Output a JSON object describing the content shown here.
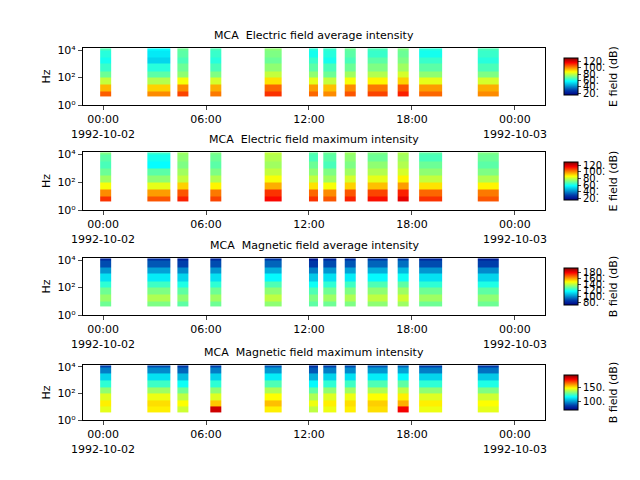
{
  "chart_data": [
    {
      "type": "heatmap",
      "title": "MCA  Electric field average intensity",
      "ylabel": "Hz",
      "log": "y",
      "xlim": [
        "1992-10-01 22:50",
        "1992-10-03 01:45"
      ],
      "xticks": [
        {
          "value": "1992-10-02 00:00",
          "label": "00:00\n1992-10-02"
        },
        {
          "value": "1992-10-02 06:00",
          "label": "06:00"
        },
        {
          "value": "1992-10-02 12:00",
          "label": "12:00"
        },
        {
          "value": "1992-10-02 18:00",
          "label": "18:00"
        },
        {
          "value": "1992-10-03 00:00",
          "label": "00:00\n1992-10-03"
        }
      ],
      "ylim": [
        1,
        14000
      ],
      "yticks": [
        {
          "value": 1,
          "label": "10⁰"
        },
        {
          "value": 100,
          "label": "10²"
        },
        {
          "value": 10000,
          "label": "10⁴"
        }
      ],
      "x": [
        [
          "1992-10-01 23:50",
          "1992-10-02 00:30"
        ],
        [
          "1992-10-02 02:35",
          "1992-10-02 03:55"
        ],
        [
          "1992-10-02 04:20",
          "1992-10-02 05:00"
        ],
        [
          "1992-10-02 06:15",
          "1992-10-02 06:55"
        ],
        [
          "1992-10-02 09:25",
          "1992-10-02 10:25"
        ],
        [
          "1992-10-02 12:00",
          "1992-10-02 12:30"
        ],
        [
          "1992-10-02 12:50",
          "1992-10-02 13:35"
        ],
        [
          "1992-10-02 14:05",
          "1992-10-02 14:45"
        ],
        [
          "1992-10-02 15:25",
          "1992-10-02 16:35"
        ],
        [
          "1992-10-02 17:10",
          "1992-10-02 17:50"
        ],
        [
          "1992-10-02 18:25",
          "1992-10-02 19:45"
        ],
        [
          "1992-10-02 21:50",
          "1992-10-02 23:05"
        ]
      ],
      "y": [
        4,
        10,
        30,
        100,
        300,
        1000,
        3000,
        10000,
        13000
      ],
      "z": [
        [
          105,
          100,
          108,
          102,
          110,
          104,
          100,
          106,
          108,
          112,
          104,
          100
        ],
        [
          95,
          92,
          100,
          96,
          104,
          98,
          94,
          100,
          102,
          106,
          98,
          96
        ],
        [
          80,
          78,
          86,
          82,
          90,
          84,
          80,
          86,
          88,
          92,
          84,
          82
        ],
        [
          70,
          68,
          74,
          72,
          80,
          74,
          70,
          76,
          78,
          82,
          74,
          72
        ],
        [
          64,
          62,
          70,
          66,
          74,
          68,
          66,
          70,
          72,
          76,
          68,
          66
        ],
        [
          60,
          52,
          66,
          62,
          70,
          64,
          60,
          66,
          68,
          72,
          64,
          62
        ],
        [
          62,
          55,
          68,
          64,
          72,
          60,
          62,
          68,
          64,
          70,
          60,
          64
        ],
        [
          66,
          58,
          70,
          66,
          74,
          62,
          64,
          70,
          66,
          72,
          62,
          66
        ]
      ],
      "colorbar": {
        "title": "E field (dB)",
        "range": [
          15,
          130
        ],
        "ticks": [
          {
            "value": 20,
            "label": "20."
          },
          {
            "value": 40,
            "label": "40."
          },
          {
            "value": 60,
            "label": "60."
          },
          {
            "value": 80,
            "label": "80."
          },
          {
            "value": 100,
            "label": "100."
          },
          {
            "value": 120,
            "label": "120."
          }
        ]
      }
    },
    {
      "type": "heatmap",
      "title": "MCA  Electric field maximum intensity",
      "ylabel": "Hz",
      "log": "y",
      "xlim": [
        "1992-10-01 22:50",
        "1992-10-03 01:45"
      ],
      "xticks": [
        {
          "value": "1992-10-02 00:00",
          "label": "00:00\n1992-10-02"
        },
        {
          "value": "1992-10-02 06:00",
          "label": "06:00"
        },
        {
          "value": "1992-10-02 12:00",
          "label": "12:00"
        },
        {
          "value": "1992-10-02 18:00",
          "label": "18:00"
        },
        {
          "value": "1992-10-03 00:00",
          "label": "00:00\n1992-10-03"
        }
      ],
      "ylim": [
        1,
        14000
      ],
      "yticks": [
        {
          "value": 1,
          "label": "10⁰"
        },
        {
          "value": 100,
          "label": "10²"
        },
        {
          "value": 10000,
          "label": "10⁴"
        }
      ],
      "x": [
        [
          "1992-10-01 23:50",
          "1992-10-02 00:30"
        ],
        [
          "1992-10-02 02:35",
          "1992-10-02 03:55"
        ],
        [
          "1992-10-02 04:20",
          "1992-10-02 05:00"
        ],
        [
          "1992-10-02 06:15",
          "1992-10-02 06:55"
        ],
        [
          "1992-10-02 09:25",
          "1992-10-02 10:25"
        ],
        [
          "1992-10-02 12:00",
          "1992-10-02 12:30"
        ],
        [
          "1992-10-02 12:50",
          "1992-10-02 13:35"
        ],
        [
          "1992-10-02 14:05",
          "1992-10-02 14:45"
        ],
        [
          "1992-10-02 15:25",
          "1992-10-02 16:35"
        ],
        [
          "1992-10-02 17:10",
          "1992-10-02 17:50"
        ],
        [
          "1992-10-02 18:25",
          "1992-10-02 19:45"
        ],
        [
          "1992-10-02 21:50",
          "1992-10-02 23:05"
        ]
      ],
      "y": [
        4,
        10,
        30,
        100,
        300,
        1000,
        3000,
        10000,
        13000
      ],
      "z": [
        [
          110,
          106,
          112,
          108,
          115,
          110,
          106,
          112,
          114,
          118,
          110,
          106
        ],
        [
          100,
          98,
          106,
          102,
          110,
          104,
          100,
          106,
          108,
          112,
          104,
          102
        ],
        [
          86,
          84,
          92,
          88,
          96,
          90,
          86,
          92,
          94,
          98,
          90,
          88
        ],
        [
          76,
          74,
          80,
          78,
          86,
          80,
          76,
          82,
          84,
          88,
          80,
          78
        ],
        [
          70,
          68,
          76,
          72,
          80,
          74,
          72,
          76,
          78,
          82,
          74,
          72
        ],
        [
          66,
          58,
          72,
          68,
          76,
          70,
          66,
          72,
          74,
          78,
          70,
          68
        ],
        [
          68,
          60,
          74,
          70,
          78,
          66,
          68,
          74,
          70,
          76,
          66,
          70
        ],
        [
          72,
          64,
          76,
          72,
          80,
          68,
          70,
          76,
          72,
          78,
          68,
          72
        ]
      ],
      "colorbar": {
        "title": "E field (dB)",
        "range": [
          15,
          130
        ],
        "ticks": [
          {
            "value": 20,
            "label": "20."
          },
          {
            "value": 40,
            "label": "40."
          },
          {
            "value": 60,
            "label": "60."
          },
          {
            "value": 80,
            "label": "80."
          },
          {
            "value": 100,
            "label": "100."
          },
          {
            "value": 120,
            "label": "120."
          }
        ]
      }
    },
    {
      "type": "heatmap",
      "title": "MCA  Magnetic field average intensity",
      "ylabel": "Hz",
      "log": "y",
      "xlim": [
        "1992-10-01 22:50",
        "1992-10-03 01:45"
      ],
      "xticks": [
        {
          "value": "1992-10-02 00:00",
          "label": "00:00\n1992-10-02"
        },
        {
          "value": "1992-10-02 06:00",
          "label": "06:00"
        },
        {
          "value": "1992-10-02 12:00",
          "label": "12:00"
        },
        {
          "value": "1992-10-02 18:00",
          "label": "18:00"
        },
        {
          "value": "1992-10-03 00:00",
          "label": "00:00\n1992-10-03"
        }
      ],
      "ylim": [
        1,
        14000
      ],
      "yticks": [
        {
          "value": 1,
          "label": "10⁰"
        },
        {
          "value": 100,
          "label": "10²"
        },
        {
          "value": 10000,
          "label": "10⁴"
        }
      ],
      "x": [
        [
          "1992-10-01 23:50",
          "1992-10-02 00:30"
        ],
        [
          "1992-10-02 02:35",
          "1992-10-02 03:55"
        ],
        [
          "1992-10-02 04:20",
          "1992-10-02 05:00"
        ],
        [
          "1992-10-02 06:15",
          "1992-10-02 06:55"
        ],
        [
          "1992-10-02 09:25",
          "1992-10-02 10:25"
        ],
        [
          "1992-10-02 12:00",
          "1992-10-02 12:30"
        ],
        [
          "1992-10-02 12:50",
          "1992-10-02 13:35"
        ],
        [
          "1992-10-02 14:05",
          "1992-10-02 14:45"
        ],
        [
          "1992-10-02 15:25",
          "1992-10-02 16:35"
        ],
        [
          "1992-10-02 17:10",
          "1992-10-02 17:50"
        ],
        [
          "1992-10-02 18:25",
          "1992-10-02 19:45"
        ],
        [
          "1992-10-02 21:50",
          "1992-10-02 23:05"
        ]
      ],
      "y": [
        4,
        10,
        30,
        100,
        300,
        1000,
        3000,
        10000,
        13000
      ],
      "z": [
        [
          130,
          132,
          128,
          130,
          134,
          128,
          130,
          132,
          134,
          136,
          130,
          130
        ],
        [
          135,
          138,
          134,
          136,
          140,
          132,
          136,
          138,
          140,
          142,
          136,
          134
        ],
        [
          130,
          132,
          128,
          130,
          134,
          126,
          130,
          132,
          134,
          136,
          130,
          128
        ],
        [
          122,
          124,
          120,
          122,
          126,
          118,
          122,
          124,
          126,
          128,
          122,
          120
        ],
        [
          112,
          114,
          110,
          112,
          116,
          108,
          112,
          114,
          116,
          118,
          112,
          110
        ],
        [
          100,
          102,
          98,
          100,
          104,
          96,
          100,
          102,
          104,
          106,
          100,
          98
        ],
        [
          88,
          90,
          86,
          88,
          92,
          84,
          88,
          90,
          92,
          94,
          88,
          86
        ],
        [
          80,
          82,
          78,
          80,
          84,
          76,
          80,
          82,
          84,
          86,
          80,
          78
        ]
      ],
      "colorbar": {
        "title": "B field (dB)",
        "range": [
          70,
          195
        ],
        "ticks": [
          {
            "value": 80,
            "label": "80."
          },
          {
            "value": 100,
            "label": "100."
          },
          {
            "value": 120,
            "label": "120."
          },
          {
            "value": 140,
            "label": "140."
          },
          {
            "value": 160,
            "label": "160."
          },
          {
            "value": 180,
            "label": "180."
          }
        ]
      }
    },
    {
      "type": "heatmap",
      "title": "MCA  Magnetic field maximum intensity",
      "ylabel": "Hz",
      "log": "y",
      "xlim": [
        "1992-10-01 22:50",
        "1992-10-03 01:45"
      ],
      "xticks": [
        {
          "value": "1992-10-02 00:00",
          "label": "00:00\n1992-10-02"
        },
        {
          "value": "1992-10-02 06:00",
          "label": "06:00"
        },
        {
          "value": "1992-10-02 12:00",
          "label": "12:00"
        },
        {
          "value": "1992-10-02 18:00",
          "label": "18:00"
        },
        {
          "value": "1992-10-03 00:00",
          "label": "00:00\n1992-10-03"
        }
      ],
      "ylim": [
        1,
        14000
      ],
      "yticks": [
        {
          "value": 1,
          "label": "10⁰"
        },
        {
          "value": 100,
          "label": "10²"
        },
        {
          "value": 10000,
          "label": "10⁴"
        }
      ],
      "x": [
        [
          "1992-10-01 23:50",
          "1992-10-02 00:30"
        ],
        [
          "1992-10-02 02:35",
          "1992-10-02 03:55"
        ],
        [
          "1992-10-02 04:20",
          "1992-10-02 05:00"
        ],
        [
          "1992-10-02 06:15",
          "1992-10-02 06:55"
        ],
        [
          "1992-10-02 09:25",
          "1992-10-02 10:25"
        ],
        [
          "1992-10-02 12:00",
          "1992-10-02 12:30"
        ],
        [
          "1992-10-02 12:50",
          "1992-10-02 13:35"
        ],
        [
          "1992-10-02 14:05",
          "1992-10-02 14:45"
        ],
        [
          "1992-10-02 15:25",
          "1992-10-02 16:35"
        ],
        [
          "1992-10-02 17:10",
          "1992-10-02 17:50"
        ],
        [
          "1992-10-02 18:25",
          "1992-10-02 19:45"
        ],
        [
          "1992-10-02 21:50",
          "1992-10-02 23:05"
        ]
      ],
      "y": [
        4,
        10,
        30,
        100,
        300,
        1000,
        3000,
        10000,
        13000
      ],
      "z": [
        [
          145,
          150,
          142,
          185,
          150,
          140,
          146,
          150,
          152,
          180,
          146,
          145
        ],
        [
          150,
          152,
          148,
          155,
          156,
          146,
          150,
          152,
          154,
          158,
          150,
          148
        ],
        [
          144,
          146,
          140,
          144,
          148,
          138,
          144,
          146,
          148,
          150,
          144,
          142
        ],
        [
          134,
          136,
          130,
          134,
          138,
          128,
          134,
          136,
          138,
          140,
          134,
          132
        ],
        [
          122,
          124,
          118,
          122,
          126,
          116,
          122,
          124,
          126,
          128,
          122,
          120
        ],
        [
          110,
          112,
          106,
          110,
          114,
          104,
          110,
          112,
          114,
          116,
          110,
          108
        ],
        [
          96,
          98,
          92,
          96,
          100,
          90,
          96,
          98,
          100,
          102,
          96,
          94
        ],
        [
          86,
          88,
          84,
          86,
          90,
          82,
          86,
          88,
          90,
          92,
          86,
          84
        ]
      ],
      "colorbar": {
        "title": "B field (dB)",
        "range": [
          70,
          195
        ],
        "ticks": [
          {
            "value": 100,
            "label": "100."
          },
          {
            "value": 150,
            "label": "150."
          }
        ]
      }
    }
  ]
}
